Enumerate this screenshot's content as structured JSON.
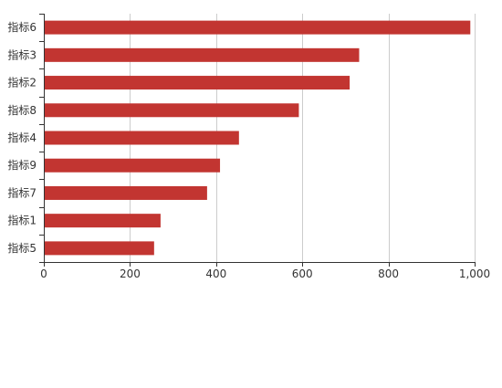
{
  "chart_data": {
    "type": "bar",
    "orientation": "horizontal",
    "categories": [
      "指标6",
      "指标3",
      "指标2",
      "指标8",
      "指标4",
      "指标9",
      "指标7",
      "指标1",
      "指标5"
    ],
    "values": [
      990,
      732,
      710,
      592,
      453,
      409,
      379,
      271,
      256
    ],
    "xlim": [
      0,
      1000
    ],
    "x_ticks": [
      "0",
      "200",
      "400",
      "600",
      "800",
      "1,000"
    ],
    "x_tick_values": [
      0,
      200,
      400,
      600,
      800,
      1000
    ],
    "grid": "vertical",
    "bar_color": "#c23531",
    "grid_color": "#cccccc",
    "axis_color": "#333333",
    "title": "",
    "xlabel": "",
    "ylabel": ""
  }
}
